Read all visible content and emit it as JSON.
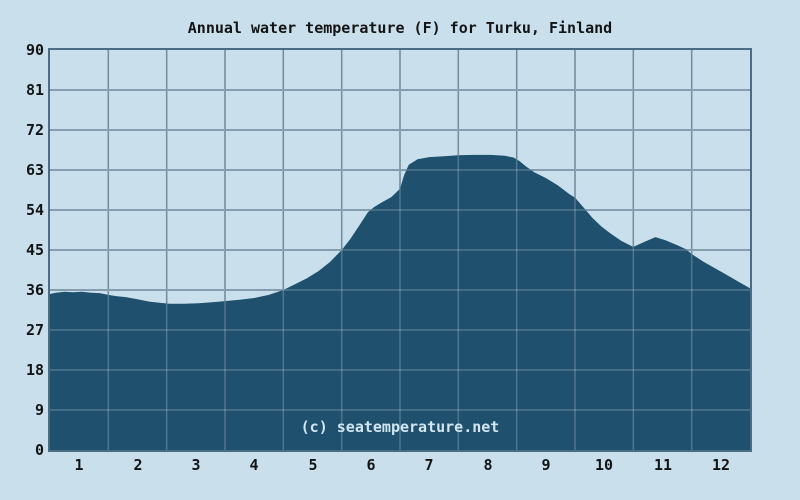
{
  "page": {
    "background": "#c9e0ec"
  },
  "watermark": {
    "text": "(c) seatemperature.net",
    "color": "#d2e5f0"
  },
  "chart_data": {
    "type": "area",
    "title": "Annual water temperature (F) for Turku, Finland",
    "xlabel": "",
    "ylabel": "",
    "x_unit": "month",
    "categories": [
      "1",
      "2",
      "3",
      "4",
      "5",
      "6",
      "7",
      "8",
      "9",
      "10",
      "11",
      "12"
    ],
    "monthly_values": [
      36,
      34,
      33,
      34,
      39,
      54,
      66,
      66,
      61,
      50,
      47,
      39
    ],
    "yticks": [
      0,
      9,
      18,
      27,
      36,
      45,
      54,
      63,
      72,
      81,
      90
    ],
    "ylim": [
      0,
      90
    ],
    "xlim": [
      0,
      12
    ],
    "grid": true,
    "legend": "none",
    "colors": {
      "background": "#c9e0ec",
      "area_fill": "#1f506e",
      "gridline": "#4a6d85",
      "gridline_over_fill": "rgba(255,255,255,0.22)",
      "border": "#4a6d85",
      "text": "#141414"
    },
    "curve": [
      [
        0.0,
        35.1
      ],
      [
        0.1,
        35.4
      ],
      [
        0.25,
        35.6
      ],
      [
        0.4,
        35.5
      ],
      [
        0.55,
        35.6
      ],
      [
        0.7,
        35.4
      ],
      [
        0.85,
        35.3
      ],
      [
        1.0,
        34.9
      ],
      [
        1.15,
        34.6
      ],
      [
        1.3,
        34.4
      ],
      [
        1.5,
        33.9
      ],
      [
        1.7,
        33.4
      ],
      [
        1.9,
        33.1
      ],
      [
        2.05,
        32.9
      ],
      [
        2.3,
        32.9
      ],
      [
        2.55,
        33.0
      ],
      [
        2.75,
        33.2
      ],
      [
        3.0,
        33.5
      ],
      [
        3.25,
        33.8
      ],
      [
        3.5,
        34.2
      ],
      [
        3.75,
        34.9
      ],
      [
        4.0,
        36.0
      ],
      [
        4.2,
        37.3
      ],
      [
        4.4,
        38.6
      ],
      [
        4.6,
        40.2
      ],
      [
        4.8,
        42.3
      ],
      [
        5.0,
        45.0
      ],
      [
        5.15,
        47.5
      ],
      [
        5.3,
        50.5
      ],
      [
        5.45,
        53.5
      ],
      [
        5.55,
        54.6
      ],
      [
        5.7,
        55.8
      ],
      [
        5.85,
        56.9
      ],
      [
        6.0,
        58.8
      ],
      [
        6.07,
        61.8
      ],
      [
        6.15,
        64.2
      ],
      [
        6.3,
        65.4
      ],
      [
        6.5,
        65.9
      ],
      [
        6.75,
        66.1
      ],
      [
        7.0,
        66.3
      ],
      [
        7.25,
        66.4
      ],
      [
        7.55,
        66.4
      ],
      [
        7.8,
        66.2
      ],
      [
        7.95,
        65.8
      ],
      [
        8.05,
        65.0
      ],
      [
        8.15,
        63.9
      ],
      [
        8.3,
        62.5
      ],
      [
        8.5,
        61.2
      ],
      [
        8.7,
        59.6
      ],
      [
        8.9,
        57.6
      ],
      [
        9.0,
        56.8
      ],
      [
        9.15,
        54.5
      ],
      [
        9.3,
        52.2
      ],
      [
        9.45,
        50.3
      ],
      [
        9.6,
        48.8
      ],
      [
        9.8,
        47.0
      ],
      [
        10.0,
        45.7
      ],
      [
        10.2,
        46.9
      ],
      [
        10.38,
        47.9
      ],
      [
        10.55,
        47.2
      ],
      [
        10.75,
        46.1
      ],
      [
        10.9,
        45.2
      ],
      [
        11.0,
        44.1
      ],
      [
        11.2,
        42.4
      ],
      [
        11.4,
        40.9
      ],
      [
        11.6,
        39.4
      ],
      [
        11.8,
        37.9
      ],
      [
        12.0,
        36.4
      ]
    ]
  }
}
